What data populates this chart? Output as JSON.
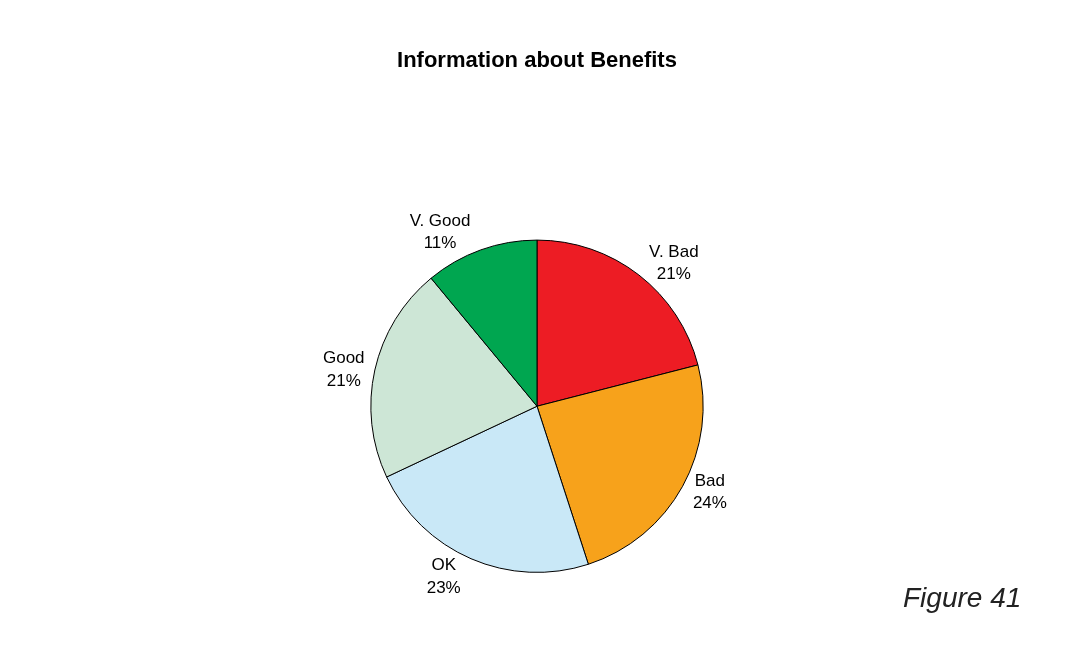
{
  "chart_data": {
    "type": "pie",
    "title": "Information about Benefits",
    "categories": [
      "V. Bad",
      "Bad",
      "OK",
      "Good",
      "V. Good"
    ],
    "values": [
      21,
      24,
      23,
      21,
      11
    ],
    "value_labels": [
      "21%",
      "24%",
      "23%",
      "21%",
      "11%"
    ],
    "colors": [
      "#ed1c24",
      "#f7a21b",
      "#c9e8f7",
      "#cde6d6",
      "#00a650"
    ],
    "legend": false,
    "annotations": [
      "Figure 41"
    ]
  }
}
